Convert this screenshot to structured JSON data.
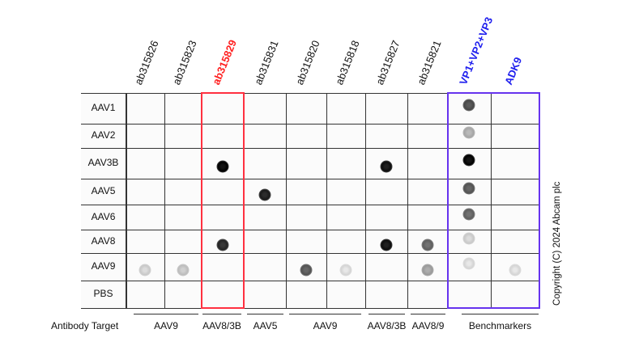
{
  "columns": [
    {
      "label": "ab315826",
      "color": "#111111"
    },
    {
      "label": "ab315823",
      "color": "#111111"
    },
    {
      "label": "ab315829",
      "color": "#ff2020"
    },
    {
      "label": "ab315831",
      "color": "#111111"
    },
    {
      "label": "ab315820",
      "color": "#111111"
    },
    {
      "label": "ab315818",
      "color": "#111111"
    },
    {
      "label": "ab315827",
      "color": "#111111"
    },
    {
      "label": "ab315821",
      "color": "#111111"
    },
    {
      "label": "VP1+VP2+VP3",
      "color": "#2020ee"
    },
    {
      "label": "ADK9",
      "color": "#2020ee"
    }
  ],
  "rows": [
    "AAV1",
    "AAV2",
    "AAV3B",
    "AAV5",
    "AAV6",
    "AAV8",
    "AAV9",
    "PBS"
  ],
  "signal_intensity": [
    [
      0,
      0,
      0,
      0,
      0,
      0,
      0,
      0,
      0.7,
      0
    ],
    [
      0,
      0,
      0,
      0,
      0,
      0,
      0,
      0,
      0.3,
      0
    ],
    [
      0,
      0,
      1,
      0,
      0,
      0,
      0.95,
      0,
      1,
      0
    ],
    [
      0,
      0,
      0,
      0.9,
      0,
      0,
      0,
      0,
      0.65,
      0
    ],
    [
      0,
      0,
      0,
      0,
      0,
      0,
      0,
      0,
      0.6,
      0
    ],
    [
      0,
      0,
      0.85,
      0,
      0,
      0,
      0.95,
      0.6,
      0.15,
      0
    ],
    [
      0.15,
      0.2,
      0,
      0,
      0.65,
      0.1,
      0,
      0.35,
      0.1,
      0.1
    ],
    [
      0,
      0,
      0,
      0,
      0,
      0,
      0,
      0,
      0,
      0
    ]
  ],
  "highlight_boxes": [
    {
      "name": "ab315829",
      "color": "#ff3040"
    },
    {
      "name": "benchmarkers",
      "color": "#6633ee"
    }
  ],
  "antibody_target": {
    "label": "Antibody Target",
    "groups": [
      "AAV9",
      "AAV8/3B",
      "AAV5",
      "AAV9",
      "AAV8/3B",
      "AAV8/9",
      "Benchmarkers"
    ]
  },
  "copyright": "Copyright (C) 2024 Abcam plc"
}
